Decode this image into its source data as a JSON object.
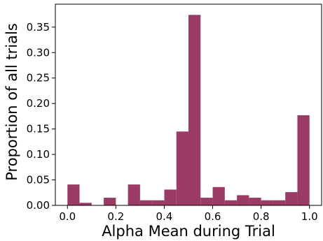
{
  "chart_data": {
    "type": "bar",
    "title": "",
    "xlabel": "Alpha Mean during Trial",
    "ylabel": "Proportion of all trials",
    "xlim": [
      -0.05,
      1.05
    ],
    "ylim": [
      0,
      0.395
    ],
    "xticks": [
      "0.0",
      "0.2",
      "0.4",
      "0.6",
      "0.8",
      "1.0"
    ],
    "xtick_values": [
      0.0,
      0.2,
      0.4,
      0.6,
      0.8,
      1.0
    ],
    "yticks": [
      "0.00",
      "0.05",
      "0.10",
      "0.15",
      "0.20",
      "0.25",
      "0.30",
      "0.35"
    ],
    "ytick_values": [
      0.0,
      0.05,
      0.1,
      0.15,
      0.2,
      0.25,
      0.3,
      0.35
    ],
    "bin_width": 0.05,
    "bin_starts": [
      0.0,
      0.05,
      0.1,
      0.15,
      0.2,
      0.25,
      0.3,
      0.35,
      0.4,
      0.45,
      0.5,
      0.55,
      0.6,
      0.65,
      0.7,
      0.75,
      0.8,
      0.85,
      0.9,
      0.95
    ],
    "values": [
      0.041,
      0.005,
      0.0,
      0.015,
      0.0,
      0.041,
      0.01,
      0.01,
      0.031,
      0.145,
      0.374,
      0.015,
      0.036,
      0.01,
      0.02,
      0.015,
      0.01,
      0.01,
      0.026,
      0.177
    ],
    "bar_color": "#9b3b65",
    "grid": false,
    "legend": "none"
  }
}
